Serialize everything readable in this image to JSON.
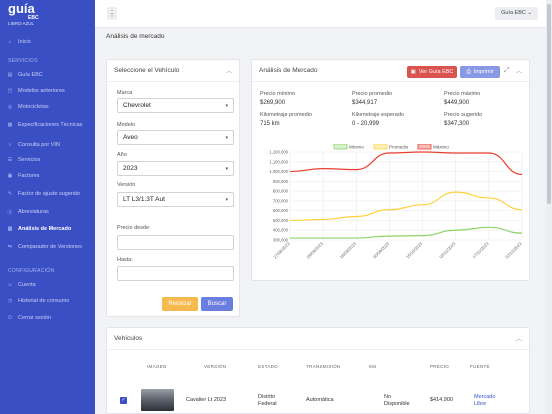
{
  "brand": {
    "name": "guía",
    "sub": "EBC",
    "tagline": "LIBRO AZUL"
  },
  "sidebar": {
    "items": [
      {
        "icon": "home-icon",
        "glyph": "⌂",
        "label": "Inicio"
      },
      {
        "section": "SERVICIOS"
      },
      {
        "icon": "book-icon",
        "glyph": "▤",
        "label": "Guía EBC"
      },
      {
        "icon": "car-icon",
        "glyph": "◳",
        "label": "Modelos anteriores"
      },
      {
        "icon": "motorcycle-icon",
        "glyph": "◎",
        "label": "Motocicletas"
      },
      {
        "icon": "specs-icon",
        "glyph": "▦",
        "label": "Especificaciones Técnicas"
      },
      {
        "icon": "search-icon",
        "glyph": "⌕",
        "label": "Consulta por VIN"
      },
      {
        "icon": "services-icon",
        "glyph": "☰",
        "label": "Servicios"
      },
      {
        "icon": "factors-icon",
        "glyph": "▣",
        "label": "Factores"
      },
      {
        "icon": "adjust-icon",
        "glyph": "✎",
        "label": "Factor de ajuste sugerido"
      },
      {
        "icon": "abbrev-icon",
        "glyph": "Ⓐ",
        "label": "Abreviaturas"
      },
      {
        "icon": "chart-icon",
        "glyph": "▥",
        "label": "Análisis de Mercado",
        "active": true
      },
      {
        "icon": "compare-icon",
        "glyph": "⇆",
        "label": "Comparador de Versiones"
      },
      {
        "section": "CONFIGURACIÓN"
      },
      {
        "icon": "user-icon",
        "glyph": "☺",
        "label": "Cuenta"
      },
      {
        "icon": "history-icon",
        "glyph": "◷",
        "label": "Historial de consumo"
      },
      {
        "icon": "logout-icon",
        "glyph": "⏻",
        "label": "Cerrar sesión"
      }
    ]
  },
  "topbar": {
    "menu_glyph": "⋮",
    "user_label": "Guía EBC ⌄"
  },
  "page": {
    "title": "Análisis de mercado"
  },
  "vehicle_form": {
    "title": "Seleccione el Vehículo",
    "marca_label": "Marca",
    "marca_value": "Chevrolet",
    "modelo_label": "Modelo",
    "modelo_value": "Aveo",
    "anio_label": "Año",
    "anio_value": "2023",
    "version_label": "Versión",
    "version_value": "LT L3/1.3T Aut",
    "precio_desde_label": "Precio desde:",
    "hasta_label": "Hasta:",
    "reset_label": "Reiniciar",
    "search_label": "Buscar"
  },
  "market": {
    "title": "Análisis de Mercado",
    "ver_guia_label": "Ver Guía EBC",
    "imprimir_label": "Imprimir",
    "stats": [
      {
        "label": "Precio mínimo",
        "value": "$269,900"
      },
      {
        "label": "Precio promedio",
        "value": "$344,917"
      },
      {
        "label": "Precio máximo",
        "value": "$449,900"
      },
      {
        "label": "Kilometraje promedio",
        "value": "715 km"
      },
      {
        "label": "Kilometraje esperado",
        "value": "0 - 20,999"
      },
      {
        "label": "Precio sugerido",
        "value": "$347,300"
      }
    ]
  },
  "chart_data": {
    "type": "line",
    "x": [
      "27/08/2023",
      "09/09/2023",
      "18/09/2023",
      "30/09/2023",
      "15/10/2023",
      "03/11/2023",
      "17/11/2023",
      "02/12/2023"
    ],
    "series": [
      {
        "name": "Mínimo",
        "color": "#8fd46b",
        "values": [
          320000,
          320000,
          320000,
          340000,
          345000,
          400000,
          430000,
          370000
        ]
      },
      {
        "name": "Promedio",
        "color": "#ffd23f",
        "values": [
          500000,
          510000,
          540000,
          610000,
          660000,
          790000,
          730000,
          610000
        ]
      },
      {
        "name": "Máximo",
        "color": "#e8402e",
        "values": [
          1000000,
          1030000,
          1020000,
          1190000,
          1200000,
          1190000,
          1190000,
          970000
        ]
      }
    ],
    "ylim": [
      300000,
      1200000
    ],
    "yticks": [
      "300,000",
      "400,000",
      "500,000",
      "600,000",
      "700,000",
      "800,000",
      "900,000",
      "1,000,000",
      "1,100,000",
      "1,200,000"
    ],
    "legend": "top",
    "grid": true
  },
  "vehicles": {
    "title": "Vehículos",
    "columns": [
      "IMAGEN",
      "VERSIÓN",
      "ESTADO",
      "TRANSMISIÓN",
      "KM",
      "PRECIO",
      "FUENTE"
    ],
    "rows": [
      {
        "checked": true,
        "version": "Cavalier Lt 2023",
        "estado": "Distrito Federal",
        "transmision": "Automática",
        "km": "No Disponible",
        "precio": "$414,900",
        "fuente": "Mercado Libre"
      }
    ]
  }
}
